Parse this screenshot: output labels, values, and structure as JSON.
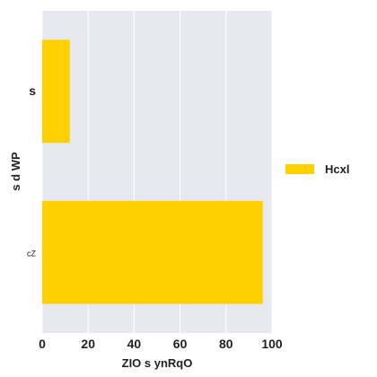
{
  "chart_data": {
    "type": "bar",
    "orientation": "horizontal",
    "categories": [
      "s",
      "cZ"
    ],
    "series": [
      {
        "name": "Hcxl",
        "values": [
          12,
          96
        ],
        "color": "#ffd000"
      }
    ],
    "xlabel": "ZIO s ynRqO",
    "ylabel": "s d WP",
    "xlim": [
      0,
      100
    ],
    "xticks": [
      0,
      20,
      40,
      60,
      80,
      100
    ],
    "grid": true,
    "legend_position": "right",
    "plot_background": "#e8e8f0"
  }
}
